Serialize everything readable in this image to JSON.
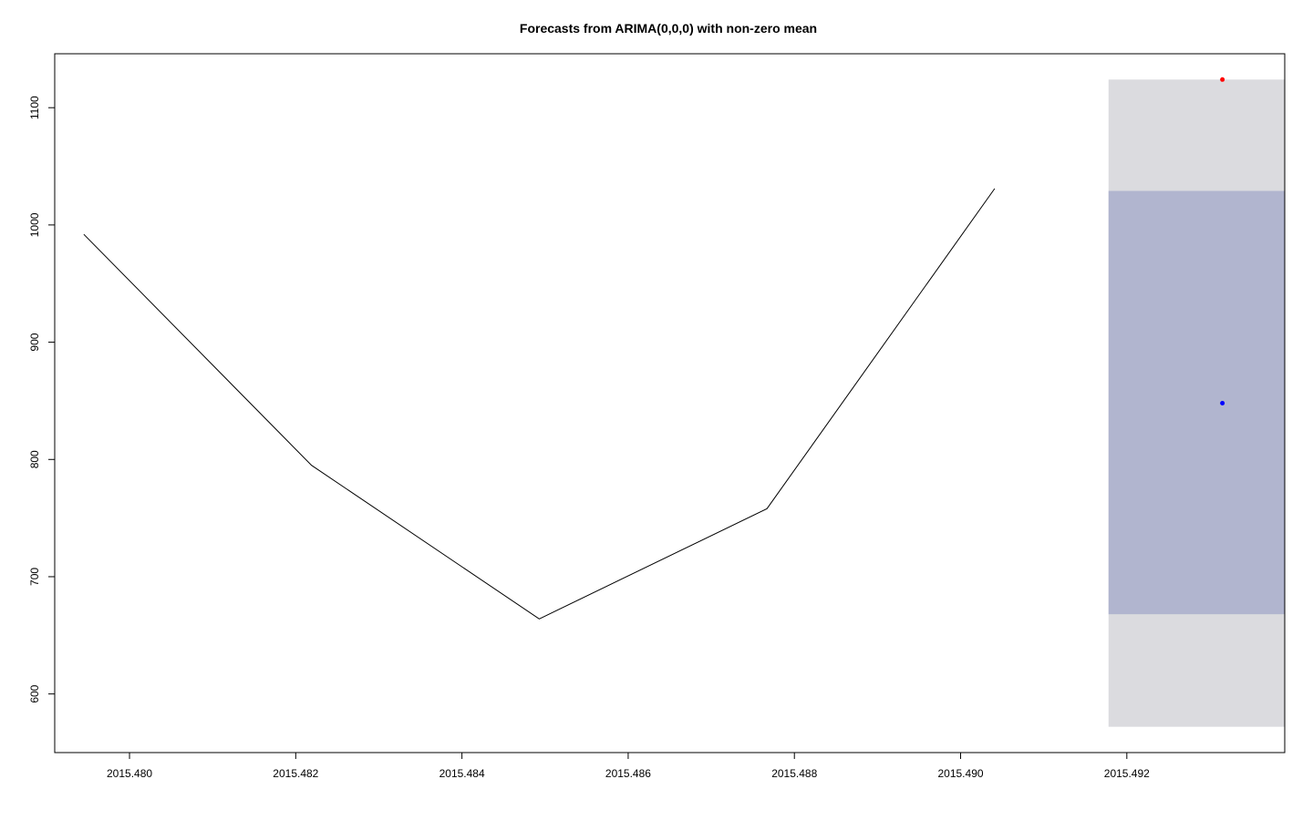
{
  "chart_data": {
    "type": "line",
    "title": "Forecasts from ARIMA(0,0,0) with non-zero mean",
    "xlabel": "",
    "ylabel": "",
    "xlim": [
      2015.4791,
      2015.4939
    ],
    "ylim": [
      550,
      1146
    ],
    "x_ticks": [
      2015.48,
      2015.482,
      2015.484,
      2015.486,
      2015.488,
      2015.49,
      2015.492
    ],
    "x_tick_labels": [
      "2015.480",
      "2015.482",
      "2015.484",
      "2015.486",
      "2015.488",
      "2015.490",
      "2015.492"
    ],
    "y_ticks": [
      600,
      700,
      800,
      900,
      1000,
      1100
    ],
    "y_tick_labels": [
      "600",
      "700",
      "800",
      "900",
      "1000",
      "1100"
    ],
    "grid": false,
    "legend": "none",
    "observed": {
      "x": [
        2015.47945,
        2015.48219,
        2015.48493,
        2015.48767,
        2015.49041
      ],
      "y": [
        992,
        795,
        664,
        758,
        1031
      ]
    },
    "forecast": {
      "x": 2015.49315,
      "point_forecast": 848,
      "interval_80": [
        668,
        1029
      ],
      "interval_95": [
        572,
        1124
      ],
      "band_x_range": [
        2015.49178,
        2015.4939
      ]
    },
    "extra_point": {
      "x": 2015.49315,
      "y": 1124
    },
    "colors": {
      "observed_line": "#000000",
      "interval_95": "#dbdbdf",
      "interval_80": "#b1b5cf",
      "forecast_point": "#0000ff",
      "extra_point": "#ff0000",
      "axis": "#000000",
      "background": "#ffffff"
    }
  }
}
